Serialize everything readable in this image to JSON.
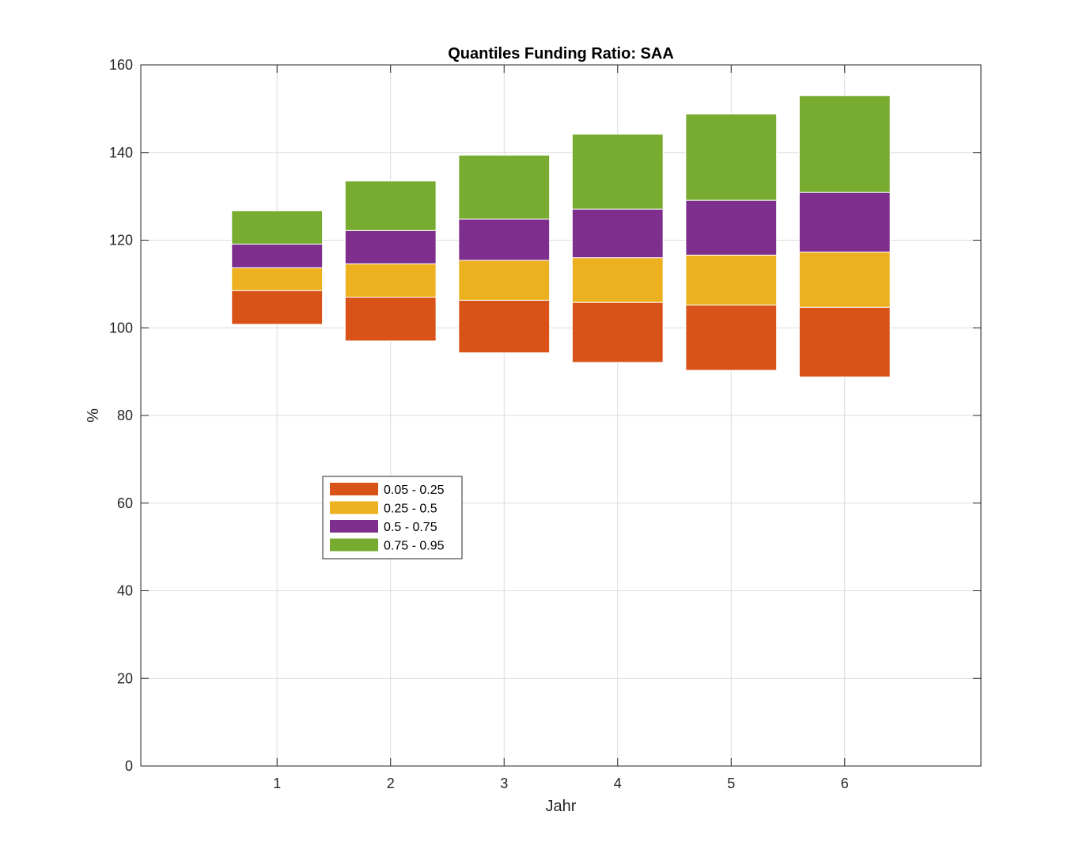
{
  "chart_data": {
    "type": "bar",
    "stacked": true,
    "title": "Quantiles Funding Ratio: SAA",
    "xlabel": "Jahr",
    "ylabel": "%",
    "ylim": [
      0,
      160
    ],
    "yticks": [
      0,
      20,
      40,
      60,
      80,
      100,
      120,
      140,
      160
    ],
    "xlim": [
      -0.2,
      7.2
    ],
    "categories": [
      "1",
      "2",
      "3",
      "4",
      "5",
      "6"
    ],
    "x": [
      1,
      2,
      3,
      4,
      5,
      6
    ],
    "grid": true,
    "legend_position": "lower-left",
    "series": [
      {
        "name": "0.05 - 0.25",
        "color": "#D95319",
        "bottom": [
          100.8,
          97.0,
          94.3,
          92.1,
          90.3,
          88.8
        ],
        "top": [
          108.5,
          107.0,
          106.3,
          105.8,
          105.2,
          104.7
        ]
      },
      {
        "name": "0.25 - 0.5",
        "color": "#EDB120",
        "bottom": [
          108.5,
          107.0,
          106.3,
          105.8,
          105.2,
          104.7
        ],
        "top": [
          113.7,
          114.6,
          115.4,
          116.0,
          116.6,
          117.3
        ]
      },
      {
        "name": "0.5 - 0.75",
        "color": "#7E2F8E",
        "bottom": [
          113.7,
          114.6,
          115.4,
          116.0,
          116.6,
          117.3
        ],
        "top": [
          119.1,
          122.2,
          124.8,
          127.1,
          129.1,
          130.9
        ]
      },
      {
        "name": "0.75 - 0.95",
        "color": "#77AC30",
        "bottom": [
          119.1,
          122.2,
          124.8,
          127.1,
          129.1,
          130.9
        ],
        "top": [
          126.7,
          133.5,
          139.4,
          144.2,
          148.8,
          153.0
        ]
      }
    ]
  }
}
